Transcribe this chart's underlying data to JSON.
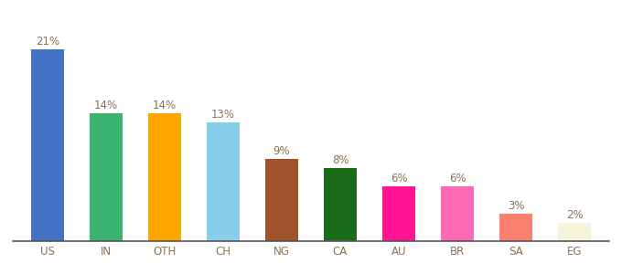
{
  "categories": [
    "US",
    "IN",
    "OTH",
    "CH",
    "NG",
    "CA",
    "AU",
    "BR",
    "SA",
    "EG"
  ],
  "values": [
    21,
    14,
    14,
    13,
    9,
    8,
    6,
    6,
    3,
    2
  ],
  "bar_colors": [
    "#4472C4",
    "#3CB371",
    "#FFA500",
    "#87CEEB",
    "#A0522D",
    "#1A6B1A",
    "#FF1493",
    "#FF69B4",
    "#FA8072",
    "#F5F5DC"
  ],
  "ylim": [
    0,
    24
  ],
  "label_fontsize": 8.5,
  "tick_fontsize": 8.5,
  "background_color": "#ffffff",
  "label_color": "#8B7355",
  "tick_color": "#8B7355",
  "bar_width": 0.55
}
